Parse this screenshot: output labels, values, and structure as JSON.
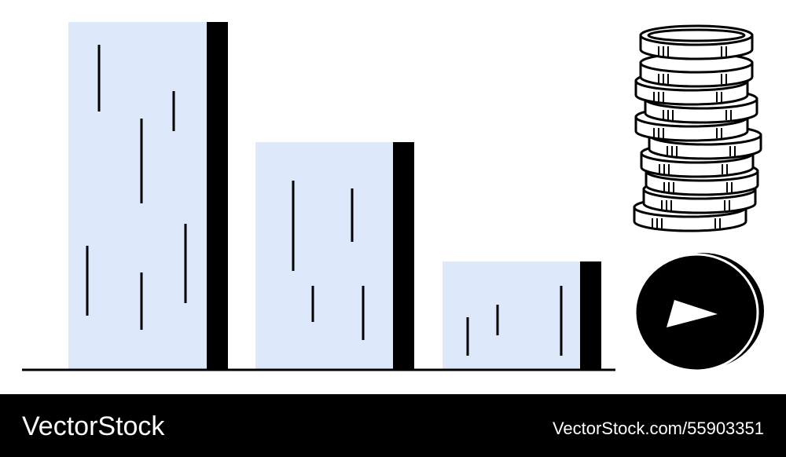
{
  "watermark": {
    "brand": "VectorStock",
    "id_text": "VectorStock.com/55903351"
  }
}
